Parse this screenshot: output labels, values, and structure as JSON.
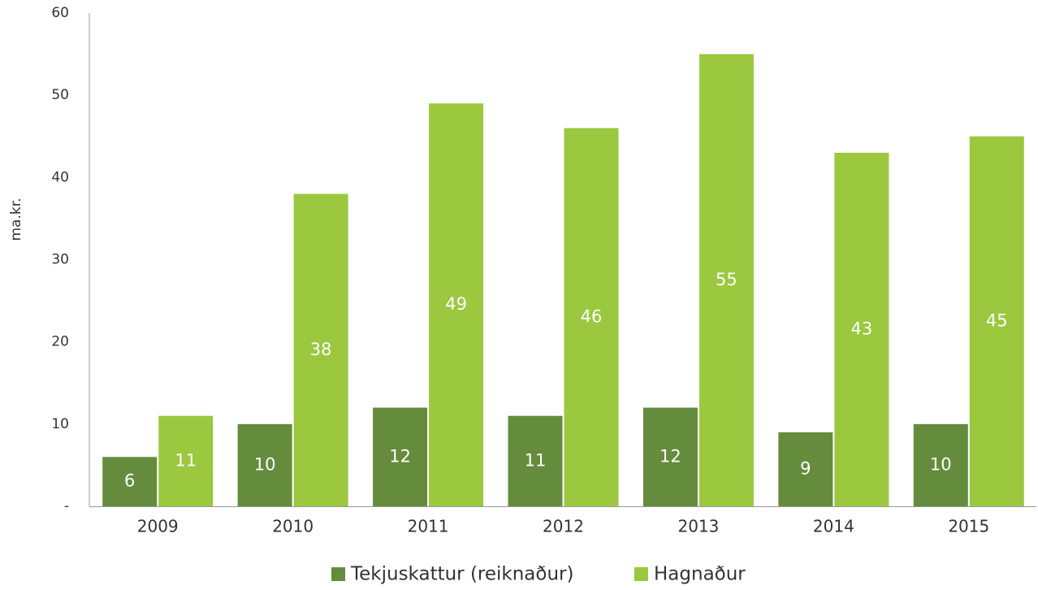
{
  "chart_data": {
    "type": "bar",
    "y_label": "ma.kr.",
    "categories": [
      "2009",
      "2010",
      "2011",
      "2012",
      "2013",
      "2014",
      "2015"
    ],
    "series": [
      {
        "name": "Tekjuskattur (reiknaður)",
        "color": "#648c3c",
        "values": [
          6,
          10,
          12,
          11,
          12,
          9,
          10
        ]
      },
      {
        "name": "Hagnaður",
        "color": "#9bc83f",
        "values": [
          11,
          38,
          49,
          46,
          55,
          43,
          45
        ]
      }
    ],
    "ylim": [
      0,
      60
    ],
    "yticks": [
      {
        "value": 0,
        "label": "-"
      },
      10,
      20,
      30,
      40,
      50,
      60
    ]
  }
}
